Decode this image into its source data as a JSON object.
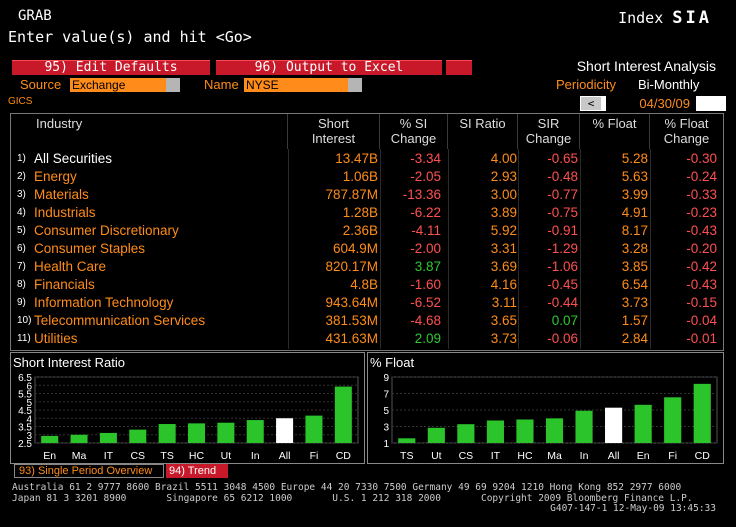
{
  "header": {
    "title": "GRAB",
    "prompt": "Enter value(s) and hit <Go>",
    "index_label": "Index",
    "index_code": "SIA"
  },
  "toolbar": {
    "edit_defaults": "95)  Edit Defaults",
    "output_excel": "96)  Output to Excel"
  },
  "filters": {
    "source_label": "Source",
    "source_value": "Exchange",
    "name_label": "Name",
    "name_value": "NYSE",
    "analysis_title": "Short Interest Analysis",
    "periodicity_label": "Periodicity",
    "periodicity_value": "Bi-Monthly",
    "gics_label": "GICS",
    "prev_arrow": "<",
    "date": "04/30/09"
  },
  "table": {
    "headers": {
      "industry": "Industry",
      "short_interest": "Short Interest",
      "pct_si_change": "% SI Change",
      "si_ratio": "SI Ratio",
      "sir_change": "SIR Change",
      "pct_float": "% Float",
      "pct_float_change": "% Float Change"
    },
    "rows": [
      {
        "n": "1)",
        "industry": "All Securities",
        "short_interest": "13.47B",
        "pct_si_change": "-3.34",
        "si_ratio": "4.00",
        "sir_change": "-0.65",
        "pct_float": "5.28",
        "pct_float_change": "-0.30"
      },
      {
        "n": "2)",
        "industry": "Energy",
        "short_interest": "1.06B",
        "pct_si_change": "-2.05",
        "si_ratio": "2.93",
        "sir_change": "-0.48",
        "pct_float": "5.63",
        "pct_float_change": "-0.24"
      },
      {
        "n": "3)",
        "industry": "Materials",
        "short_interest": "787.87M",
        "pct_si_change": "-13.36",
        "si_ratio": "3.00",
        "sir_change": "-0.77",
        "pct_float": "3.99",
        "pct_float_change": "-0.33"
      },
      {
        "n": "4)",
        "industry": "Industrials",
        "short_interest": "1.28B",
        "pct_si_change": "-6.22",
        "si_ratio": "3.89",
        "sir_change": "-0.75",
        "pct_float": "4.91",
        "pct_float_change": "-0.23"
      },
      {
        "n": "5)",
        "industry": "Consumer Discretionary",
        "short_interest": "2.36B",
        "pct_si_change": "-4.11",
        "si_ratio": "5.92",
        "sir_change": "-0.91",
        "pct_float": "8.17",
        "pct_float_change": "-0.43"
      },
      {
        "n": "6)",
        "industry": "Consumer Staples",
        "short_interest": "604.9M",
        "pct_si_change": "-2.00",
        "si_ratio": "3.31",
        "sir_change": "-1.29",
        "pct_float": "3.28",
        "pct_float_change": "-0.20"
      },
      {
        "n": "7)",
        "industry": "Health Care",
        "short_interest": "820.17M",
        "pct_si_change": "3.87",
        "si_ratio": "3.69",
        "sir_change": "-1.06",
        "pct_float": "3.85",
        "pct_float_change": "-0.42"
      },
      {
        "n": "8)",
        "industry": "Financials",
        "short_interest": "4.8B",
        "pct_si_change": "-1.60",
        "si_ratio": "4.16",
        "sir_change": "-0.45",
        "pct_float": "6.54",
        "pct_float_change": "-0.43"
      },
      {
        "n": "9)",
        "industry": "Information Technology",
        "short_interest": "943.64M",
        "pct_si_change": "-6.52",
        "si_ratio": "3.11",
        "sir_change": "-0.44",
        "pct_float": "3.73",
        "pct_float_change": "-0.15"
      },
      {
        "n": "10)",
        "industry": "Telecommunication Services",
        "short_interest": "381.53M",
        "pct_si_change": "-4.68",
        "si_ratio": "3.65",
        "sir_change": "0.07",
        "pct_float": "1.57",
        "pct_float_change": "-0.04"
      },
      {
        "n": "11)",
        "industry": "Utilities",
        "short_interest": "431.63M",
        "pct_si_change": "2.09",
        "si_ratio": "3.73",
        "sir_change": "-0.06",
        "pct_float": "2.84",
        "pct_float_change": "-0.01"
      }
    ]
  },
  "chart_data": [
    {
      "type": "bar",
      "title": "Short Interest Ratio",
      "categories": [
        "En",
        "Ma",
        "IT",
        "CS",
        "TS",
        "HC",
        "Ut",
        "In",
        "All",
        "Fi",
        "CD"
      ],
      "values": [
        2.93,
        3.0,
        3.11,
        3.31,
        3.65,
        3.69,
        3.73,
        3.89,
        4.0,
        4.16,
        5.92
      ],
      "highlight": "All",
      "yticks": [
        2.5,
        3,
        3.5,
        4,
        4.5,
        5,
        5.5,
        6,
        6.5
      ],
      "ylim": [
        2.5,
        6.5
      ]
    },
    {
      "type": "bar",
      "title": "% Float",
      "categories": [
        "TS",
        "Ut",
        "CS",
        "IT",
        "HC",
        "Ma",
        "In",
        "All",
        "En",
        "Fi",
        "CD"
      ],
      "values": [
        1.57,
        2.84,
        3.28,
        3.73,
        3.85,
        3.99,
        4.91,
        5.28,
        5.63,
        6.54,
        8.17
      ],
      "highlight": "All",
      "yticks": [
        1,
        3,
        5,
        7,
        9
      ],
      "ylim": [
        1,
        9
      ]
    }
  ],
  "tabs": {
    "single_period": "93) Single Period Overview",
    "trend": "94) Trend"
  },
  "footer": {
    "line1": "Australia 61 2 9777 8600 Brazil 5511 3048 4500 Europe 44 20 7330 7500 Germany 49 69 9204 1210 Hong Kong 852 2977 6000",
    "line2": "Japan 81 3 3201 8900       Singapore 65 6212 1000       U.S. 1 212 318 2000       Copyright 2009 Bloomberg Finance L.P.",
    "line3": "G407-147-1 12-May-09 13:45:33"
  },
  "colors": {
    "orange": "#ff8c1a",
    "red_button": "#c8192a",
    "negative": "#ff5050",
    "positive": "#2fc82f",
    "bar_green": "#2bc42b",
    "bar_highlight": "#ffffff"
  }
}
